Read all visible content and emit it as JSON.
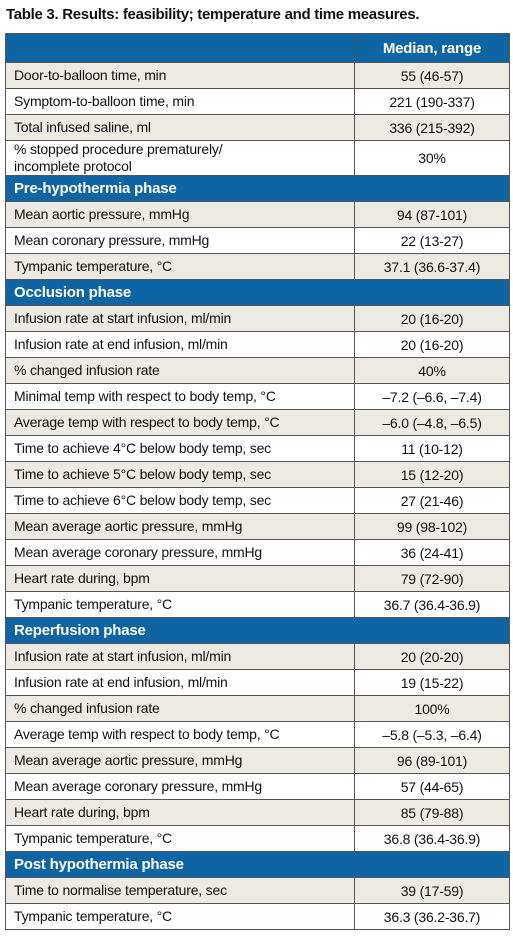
{
  "title": "Table 3. Results: feasibility; temperature and time measures.",
  "table": {
    "header": [
      "Median, range"
    ],
    "rows": [
      [
        "Door-to-balloon time, min",
        "55 (46-57)"
      ],
      [
        "Symptom-to-balloon time, min",
        "221 (190-337)"
      ],
      [
        "Total infused saline, ml",
        "336 (215-392)"
      ],
      [
        "% stopped procedure prematurely/\nincomplete protocol",
        "30%"
      ],
      [
        "Pre-hypothermia phase"
      ],
      [
        "Mean aortic pressure, mmHg",
        "94 (87-101)"
      ],
      [
        "Mean coronary pressure, mmHg",
        "22 (13-27)"
      ],
      [
        "Tympanic temperature, °C",
        "37.1 (36.6-37.4)"
      ],
      [
        "Occlusion phase"
      ],
      [
        "Infusion rate at start infusion, ml/min",
        "20 (16-20)"
      ],
      [
        "Infusion rate at end infusion, ml/min",
        "20 (16-20)"
      ],
      [
        "% changed infusion rate",
        "40%"
      ],
      [
        "Minimal temp with respect to body temp, °C",
        "–7.2 (–6.6, –7.4)"
      ],
      [
        "Average temp with respect to body temp, °C",
        "–6.0 (–4.8, –6.5)"
      ],
      [
        "Time to achieve 4°C below body temp, sec",
        "11 (10-12)"
      ],
      [
        "Time to achieve 5°C below body temp, sec",
        "15 (12-20)"
      ],
      [
        "Time to achieve 6°C below body temp, sec",
        "27 (21-46)"
      ],
      [
        "Mean average aortic pressure, mmHg",
        "99 (98-102)"
      ],
      [
        "Mean average coronary pressure, mmHg",
        "36 (24-41)"
      ],
      [
        "Heart rate during, bpm",
        "79 (72-90)"
      ],
      [
        "Tympanic temperature, °C",
        "36.7 (36.4-36.9)"
      ],
      [
        "Reperfusion phase"
      ],
      [
        "Infusion rate at start infusion, ml/min",
        "20 (20-20)"
      ],
      [
        "Infusion rate at end infusion, ml/min",
        "19 (15-22)"
      ],
      [
        "% changed infusion rate",
        "100%"
      ],
      [
        "Average temp with respect to body temp, °C",
        "–5.8 (–5.3, –6.4)"
      ],
      [
        "Mean average aortic pressure, mmHg",
        "96 (89-101)"
      ],
      [
        "Mean average coronary pressure, mmHg",
        "57 (44-65)"
      ],
      [
        "Heart rate during, bpm",
        "85 (79-88)"
      ],
      [
        "Tympanic temperature, °C",
        "36.8 (36.4-36.9)"
      ],
      [
        "Post hypothermia phase"
      ],
      [
        "Time to normalise temperature, sec",
        "39 (17-59)"
      ],
      [
        "Tympanic temperature, °C",
        "36.3 (36.2-36.7)"
      ]
    ]
  }
}
